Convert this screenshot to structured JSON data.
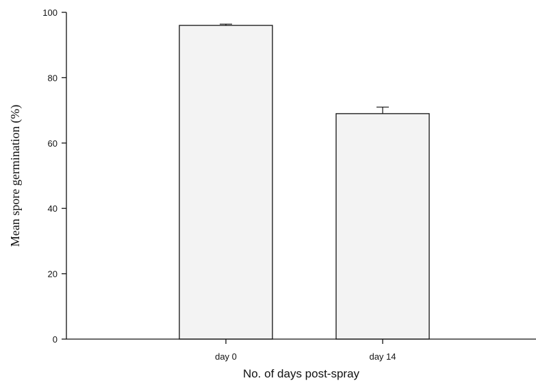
{
  "chart_data": {
    "type": "bar",
    "categories": [
      "day 0",
      "day 14"
    ],
    "values": [
      96,
      69
    ],
    "errors": [
      0.4,
      2
    ],
    "xlabel": "No. of days post-spray",
    "ylabel": "Mean spore germination (%)",
    "ylim": [
      0,
      100
    ],
    "yticks": [
      0,
      20,
      40,
      60,
      80,
      100
    ],
    "grid": false,
    "colors": {
      "bar_fill": "#f3f3f3",
      "stroke": "#111111"
    }
  }
}
